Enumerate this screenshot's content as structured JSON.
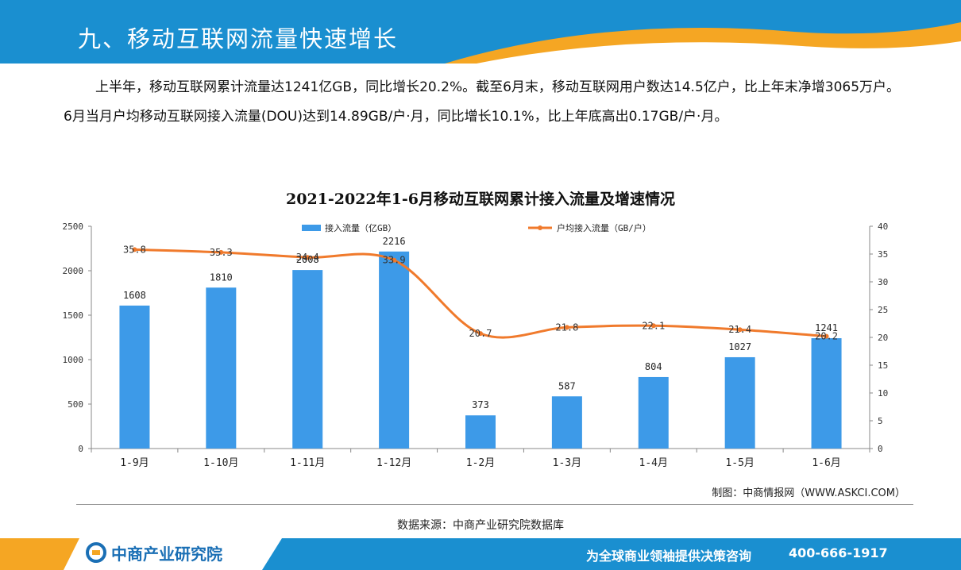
{
  "header": {
    "title": "九、移动互联网流量快速增长"
  },
  "intro": {
    "paragraph": "上半年，移动互联网累计流量达1241亿GB，同比增长20.2%。截至6月末，移动互联网用户数达14.5亿户，比上年末净增3065万户。6月当月户均移动互联网接入流量(DOU)达到14.89GB/户·月，同比增长10.1%，比上年底高出0.17GB/户·月。"
  },
  "chart_data": {
    "type": "bar",
    "title": "2021-2022年1-6月移动互联网累计接入流量及增速情况",
    "categories": [
      "1-9月",
      "1-10月",
      "1-11月",
      "1-12月",
      "1-2月",
      "1-3月",
      "1-4月",
      "1-5月",
      "1-6月"
    ],
    "series": [
      {
        "name": "接入流量（亿GB）",
        "type": "bar",
        "axis": "left",
        "color": "#3d9ae8",
        "values": [
          1608,
          1810,
          2008,
          2216,
          373,
          587,
          804,
          1027,
          1241
        ]
      },
      {
        "name": "户均接入流量（GB/户）",
        "type": "line",
        "axis": "right",
        "color": "#f07a2c",
        "values": [
          35.8,
          35.3,
          34.4,
          33.9,
          20.7,
          21.8,
          22.1,
          21.4,
          20.2
        ]
      }
    ],
    "y_left": {
      "min": 0,
      "max": 2500,
      "ticks": [
        0,
        500,
        1000,
        1500,
        2000,
        2500
      ]
    },
    "y_right": {
      "min": 0,
      "max": 40,
      "ticks": [
        0,
        5,
        10,
        15,
        20,
        25,
        30,
        35,
        40
      ]
    },
    "legend_position": "top",
    "grid": false
  },
  "credit": "制图：中商情报网（WWW.ASKCI.COM）",
  "source": "数据来源：中商产业研究院数据库",
  "footer": {
    "logo": "中商产业研究院",
    "slogan": "为全球商业领袖提供决策咨询",
    "phone": "400-666-1917"
  },
  "colors": {
    "header_blue": "#1a8fd0",
    "accent_orange": "#f5a623",
    "bar": "#3d9ae8",
    "line": "#f07a2c"
  }
}
